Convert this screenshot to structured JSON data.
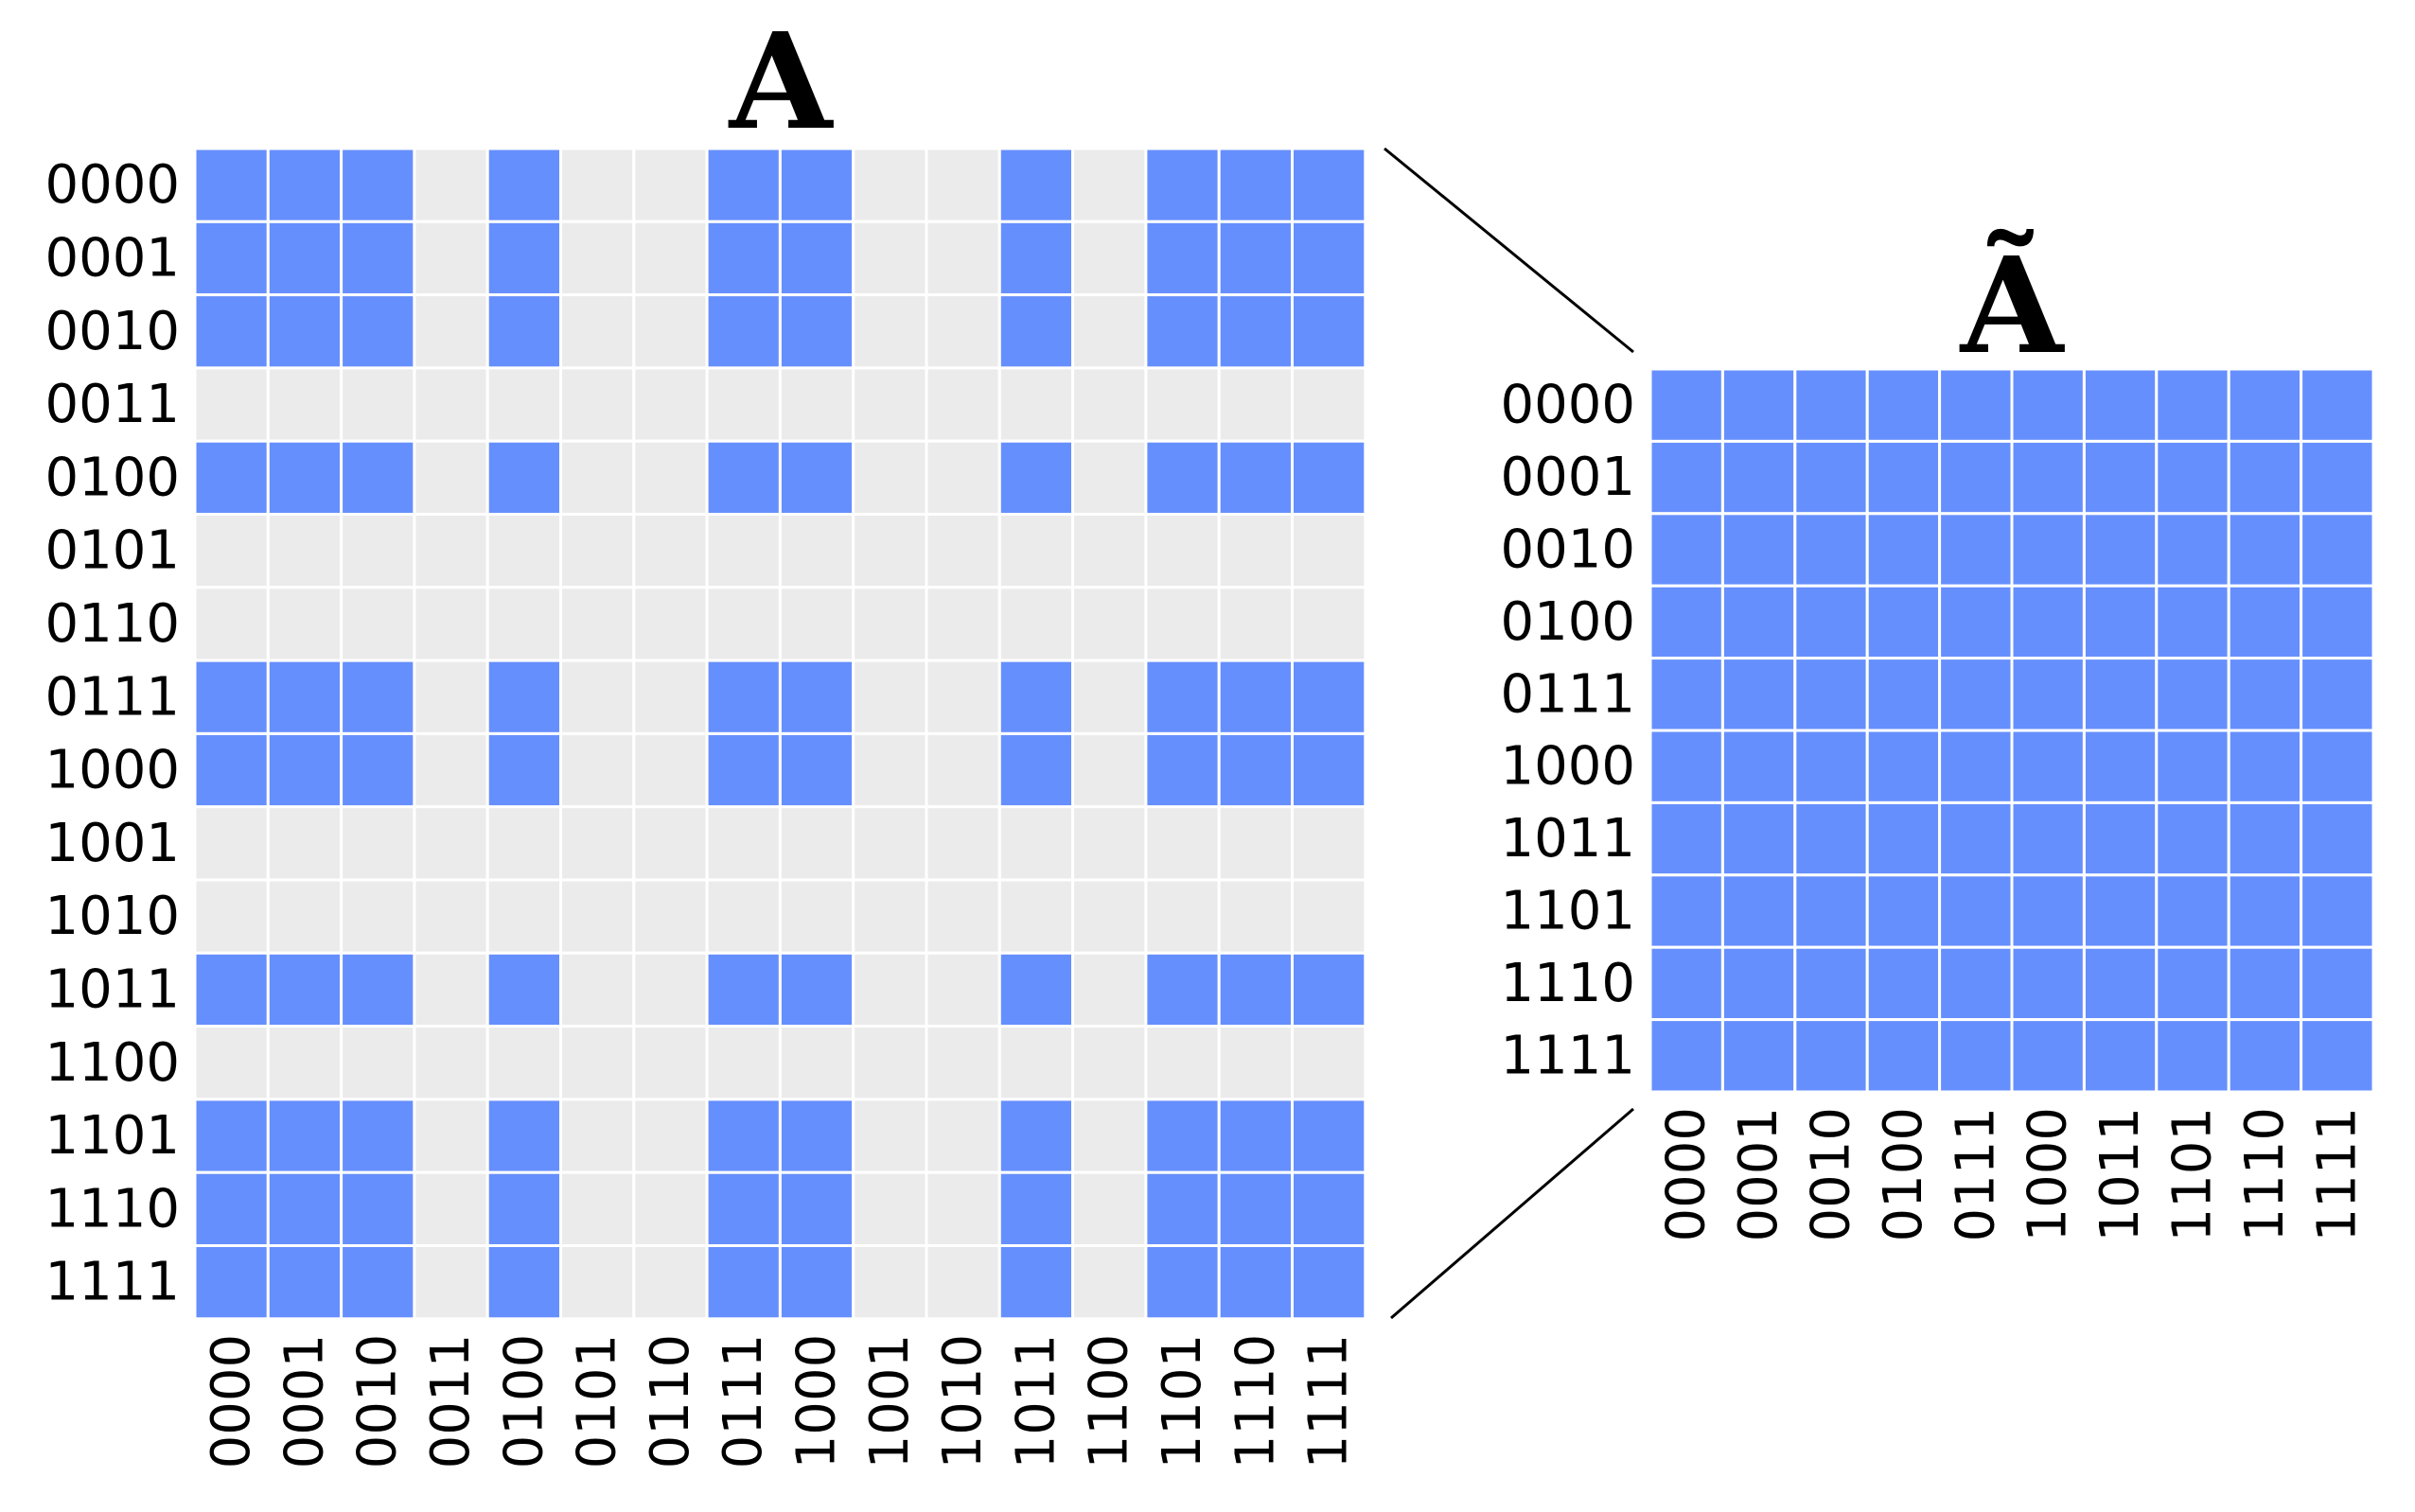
{
  "chart_data": [
    {
      "type": "heatmap",
      "title": "A",
      "xlabel": "",
      "ylabel": "",
      "row_labels": [
        "0000",
        "0001",
        "0010",
        "0011",
        "0100",
        "0101",
        "0110",
        "0111",
        "1000",
        "1001",
        "1010",
        "1011",
        "1100",
        "1101",
        "1110",
        "1111"
      ],
      "col_labels": [
        "0000",
        "0001",
        "0010",
        "0011",
        "0100",
        "0101",
        "0110",
        "0111",
        "1000",
        "1001",
        "1010",
        "1011",
        "1100",
        "1101",
        "1110",
        "1111"
      ],
      "values": [
        [
          1,
          1,
          1,
          0,
          1,
          0,
          0,
          1,
          1,
          0,
          0,
          1,
          0,
          1,
          1,
          1
        ],
        [
          1,
          1,
          1,
          0,
          1,
          0,
          0,
          1,
          1,
          0,
          0,
          1,
          0,
          1,
          1,
          1
        ],
        [
          1,
          1,
          1,
          0,
          1,
          0,
          0,
          1,
          1,
          0,
          0,
          1,
          0,
          1,
          1,
          1
        ],
        [
          0,
          0,
          0,
          0,
          0,
          0,
          0,
          0,
          0,
          0,
          0,
          0,
          0,
          0,
          0,
          0
        ],
        [
          1,
          1,
          1,
          0,
          1,
          0,
          0,
          1,
          1,
          0,
          0,
          1,
          0,
          1,
          1,
          1
        ],
        [
          0,
          0,
          0,
          0,
          0,
          0,
          0,
          0,
          0,
          0,
          0,
          0,
          0,
          0,
          0,
          0
        ],
        [
          0,
          0,
          0,
          0,
          0,
          0,
          0,
          0,
          0,
          0,
          0,
          0,
          0,
          0,
          0,
          0
        ],
        [
          1,
          1,
          1,
          0,
          1,
          0,
          0,
          1,
          1,
          0,
          0,
          1,
          0,
          1,
          1,
          1
        ],
        [
          1,
          1,
          1,
          0,
          1,
          0,
          0,
          1,
          1,
          0,
          0,
          1,
          0,
          1,
          1,
          1
        ],
        [
          0,
          0,
          0,
          0,
          0,
          0,
          0,
          0,
          0,
          0,
          0,
          0,
          0,
          0,
          0,
          0
        ],
        [
          0,
          0,
          0,
          0,
          0,
          0,
          0,
          0,
          0,
          0,
          0,
          0,
          0,
          0,
          0,
          0
        ],
        [
          1,
          1,
          1,
          0,
          1,
          0,
          0,
          1,
          1,
          0,
          0,
          1,
          0,
          1,
          1,
          1
        ],
        [
          0,
          0,
          0,
          0,
          0,
          0,
          0,
          0,
          0,
          0,
          0,
          0,
          0,
          0,
          0,
          0
        ],
        [
          1,
          1,
          1,
          0,
          1,
          0,
          0,
          1,
          1,
          0,
          0,
          1,
          0,
          1,
          1,
          1
        ],
        [
          1,
          1,
          1,
          0,
          1,
          0,
          0,
          1,
          1,
          0,
          0,
          1,
          0,
          1,
          1,
          1
        ],
        [
          1,
          1,
          1,
          0,
          1,
          0,
          0,
          1,
          1,
          0,
          0,
          1,
          0,
          1,
          1,
          1
        ]
      ]
    },
    {
      "type": "heatmap",
      "title": "Ã",
      "xlabel": "",
      "ylabel": "",
      "row_labels": [
        "0000",
        "0001",
        "0010",
        "0100",
        "0111",
        "1000",
        "1011",
        "1101",
        "1110",
        "1111"
      ],
      "col_labels": [
        "0000",
        "0001",
        "0010",
        "0100",
        "0111",
        "1000",
        "1011",
        "1101",
        "1110",
        "1111"
      ],
      "values": [
        [
          1,
          1,
          1,
          1,
          1,
          1,
          1,
          1,
          1,
          1
        ],
        [
          1,
          1,
          1,
          1,
          1,
          1,
          1,
          1,
          1,
          1
        ],
        [
          1,
          1,
          1,
          1,
          1,
          1,
          1,
          1,
          1,
          1
        ],
        [
          1,
          1,
          1,
          1,
          1,
          1,
          1,
          1,
          1,
          1
        ],
        [
          1,
          1,
          1,
          1,
          1,
          1,
          1,
          1,
          1,
          1
        ],
        [
          1,
          1,
          1,
          1,
          1,
          1,
          1,
          1,
          1,
          1
        ],
        [
          1,
          1,
          1,
          1,
          1,
          1,
          1,
          1,
          1,
          1
        ],
        [
          1,
          1,
          1,
          1,
          1,
          1,
          1,
          1,
          1,
          1
        ],
        [
          1,
          1,
          1,
          1,
          1,
          1,
          1,
          1,
          1,
          1
        ],
        [
          1,
          1,
          1,
          1,
          1,
          1,
          1,
          1,
          1,
          1
        ]
      ]
    }
  ],
  "colors": {
    "filled": "#668ffe",
    "empty": "#ebebeb",
    "grid": "#ffffff",
    "connector": "#000000"
  }
}
